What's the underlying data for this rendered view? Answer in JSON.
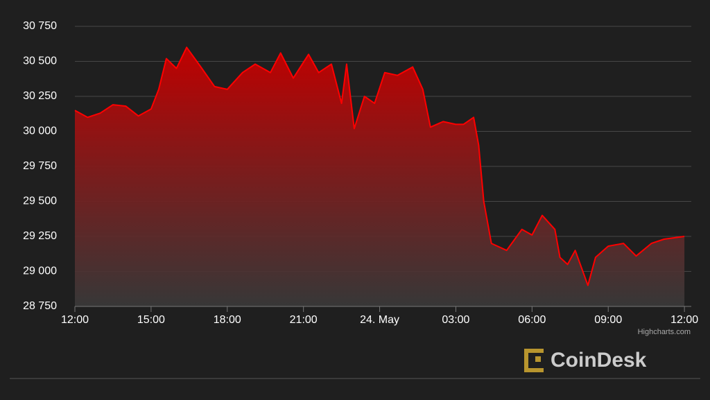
{
  "chart_data": {
    "type": "area",
    "x": [
      0,
      0.5,
      1,
      1.5,
      2,
      2.5,
      3,
      3.3,
      3.6,
      4,
      4.4,
      5,
      5.5,
      6,
      6.6,
      7.1,
      7.7,
      8.1,
      8.6,
      9.2,
      9.6,
      10.1,
      10.5,
      10.7,
      11,
      11.4,
      11.8,
      12.2,
      12.7,
      13.3,
      13.7,
      14,
      14.5,
      15,
      15.3,
      15.7,
      15.9,
      16.1,
      16.4,
      17,
      17.6,
      18,
      18.4,
      18.9,
      19.1,
      19.4,
      19.7,
      20.2,
      20.5,
      21,
      21.6,
      22.1,
      22.7,
      23.2,
      24
    ],
    "series": [
      {
        "color": "#ff0000",
        "values": [
          30150,
          30100,
          30130,
          30190,
          30180,
          30110,
          30160,
          30300,
          30520,
          30450,
          30600,
          30450,
          30320,
          30300,
          30420,
          30480,
          30420,
          30560,
          30380,
          30550,
          30420,
          30480,
          30200,
          30480,
          30020,
          30250,
          30200,
          30420,
          30400,
          30460,
          30300,
          30030,
          30070,
          30050,
          30050,
          30100,
          29900,
          29500,
          29200,
          29150,
          29300,
          29260,
          29400,
          29300,
          29100,
          29050,
          29150,
          28900,
          29100,
          29180,
          29200,
          29110,
          29200,
          29230,
          29250
        ]
      }
    ],
    "xlim": [
      0,
      24.27
    ],
    "xticks": [
      {
        "value": 0,
        "label": "12:00"
      },
      {
        "value": 3,
        "label": "15:00"
      },
      {
        "value": 6,
        "label": "18:00"
      },
      {
        "value": 9,
        "label": "21:00"
      },
      {
        "value": 12,
        "label": "24. May"
      },
      {
        "value": 15,
        "label": "03:00"
      },
      {
        "value": 18,
        "label": "06:00"
      },
      {
        "value": 21,
        "label": "09:00"
      },
      {
        "value": 24,
        "label": "12:00"
      }
    ],
    "ylim": [
      28750,
      30750
    ],
    "yticks": [
      {
        "value": 28750,
        "label": "28 750"
      },
      {
        "value": 29000,
        "label": "29 000"
      },
      {
        "value": 29250,
        "label": "29 250"
      },
      {
        "value": 29500,
        "label": "29 500"
      },
      {
        "value": 29750,
        "label": "29 750"
      },
      {
        "value": 30000,
        "label": "30 000"
      },
      {
        "value": 30250,
        "label": "30 250"
      },
      {
        "value": 30500,
        "label": "30 500"
      },
      {
        "value": 30750,
        "label": "30 750"
      }
    ],
    "grid": true,
    "credits": "Highcharts.com",
    "logo": "CoinDesk"
  }
}
